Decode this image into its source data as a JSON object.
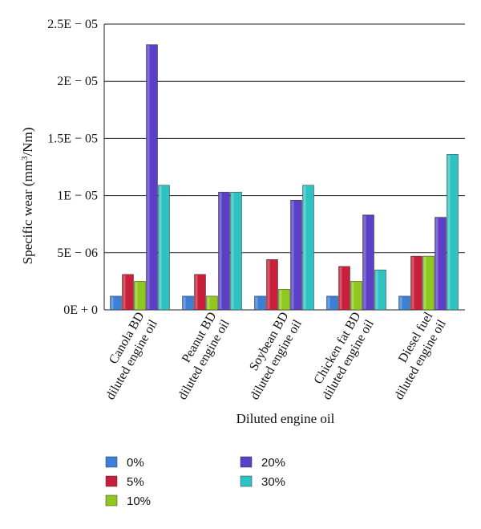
{
  "chart_data": {
    "type": "bar",
    "title": "",
    "xlabel": "Diluted engine oil",
    "ylabel": "Specific wear (mm³/Nm)",
    "ylabel_parts": {
      "before": "Specific wear (mm",
      "sup": "3",
      "after": "/Nm)"
    },
    "ylim": [
      0,
      2.5e-05
    ],
    "yticks": [
      0,
      5e-06,
      1e-05,
      1.5e-05,
      2e-05,
      2.5e-05
    ],
    "ytick_labels": [
      "0E + 0",
      "5E − 06",
      "1E − 05",
      "1.5E − 05",
      "2E − 05",
      "2.5E − 05"
    ],
    "grid": true,
    "legend_position": "bottom",
    "categories": [
      [
        "Canola BD",
        "diluted engine oil"
      ],
      [
        "Peanut BD",
        "diluted engine oil"
      ],
      [
        "Soybean BD",
        "diluted engine oil"
      ],
      [
        "Chicken fat BD",
        "diluted engine oil"
      ],
      [
        "Diesel fuel",
        "diluted engine oil"
      ]
    ],
    "series": [
      {
        "name": "0%",
        "color": "#3b7fd6",
        "values": [
          1.2e-06,
          1.2e-06,
          1.2e-06,
          1.2e-06,
          1.2e-06
        ]
      },
      {
        "name": "5%",
        "color": "#c8203a",
        "values": [
          3.1e-06,
          3.1e-06,
          4.4e-06,
          3.8e-06,
          4.7e-06
        ]
      },
      {
        "name": "10%",
        "color": "#8fc81e",
        "values": [
          2.5e-06,
          1.2e-06,
          1.8e-06,
          2.5e-06,
          4.7e-06
        ]
      },
      {
        "name": "20%",
        "color": "#5b3fc4",
        "values": [
          2.32e-05,
          1.03e-05,
          9.6e-06,
          8.3e-06,
          8.1e-06
        ]
      },
      {
        "name": "30%",
        "color": "#2ec2c2",
        "values": [
          1.09e-05,
          1.03e-05,
          1.09e-05,
          3.5e-06,
          1.36e-05
        ]
      }
    ]
  }
}
